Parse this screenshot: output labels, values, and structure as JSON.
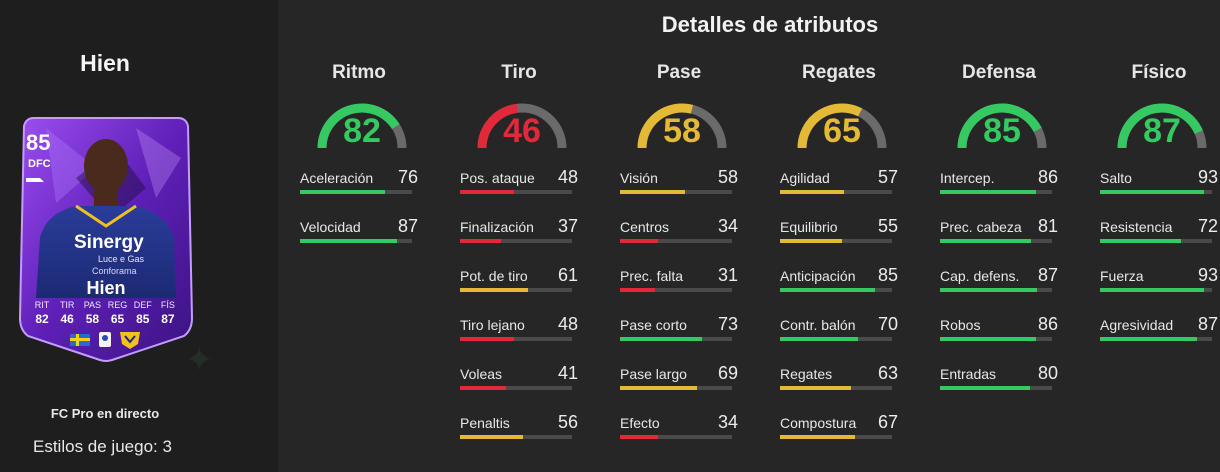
{
  "player": {
    "name": "Hien",
    "card_type": "FC Pro en directo",
    "playstyles": "Estilos de juego: 3"
  },
  "card": {
    "rating": "85",
    "position": "DFC",
    "name": "Hien",
    "sponsor": "Sinergy",
    "sponsor_sub": "Luce e Gas",
    "sponsor_sub2": "Conforama",
    "stats": [
      {
        "label": "RIT",
        "value": "82"
      },
      {
        "label": "TIR",
        "value": "46"
      },
      {
        "label": "PAS",
        "value": "58"
      },
      {
        "label": "REG",
        "value": "65"
      },
      {
        "label": "DEF",
        "value": "85"
      },
      {
        "label": "FÍS",
        "value": "87"
      }
    ]
  },
  "attributes_title": "Detalles de atributos",
  "colors": {
    "green": "#36c962",
    "yellow": "#e4b935",
    "red": "#e3283a",
    "track": "#4a4a4a",
    "card_purple": "#7c2fd6"
  },
  "columns": [
    {
      "title": "Ritmo",
      "value": "82",
      "attrs": [
        {
          "label": "Aceleración",
          "value": "76"
        },
        {
          "label": "Velocidad",
          "value": "87"
        }
      ]
    },
    {
      "title": "Tiro",
      "value": "46",
      "attrs": [
        {
          "label": "Pos. ataque",
          "value": "48"
        },
        {
          "label": "Finalización",
          "value": "37"
        },
        {
          "label": "Pot. de tiro",
          "value": "61"
        },
        {
          "label": "Tiro lejano",
          "value": "48"
        },
        {
          "label": "Voleas",
          "value": "41"
        },
        {
          "label": "Penaltis",
          "value": "56"
        }
      ]
    },
    {
      "title": "Pase",
      "value": "58",
      "attrs": [
        {
          "label": "Visión",
          "value": "58"
        },
        {
          "label": "Centros",
          "value": "34"
        },
        {
          "label": "Prec. falta",
          "value": "31"
        },
        {
          "label": "Pase corto",
          "value": "73"
        },
        {
          "label": "Pase largo",
          "value": "69"
        },
        {
          "label": "Efecto",
          "value": "34"
        }
      ]
    },
    {
      "title": "Regates",
      "value": "65",
      "attrs": [
        {
          "label": "Agilidad",
          "value": "57"
        },
        {
          "label": "Equilibrio",
          "value": "55"
        },
        {
          "label": "Anticipación",
          "value": "85"
        },
        {
          "label": "Contr. balón",
          "value": "70"
        },
        {
          "label": "Regates",
          "value": "63"
        },
        {
          "label": "Compostura",
          "value": "67"
        }
      ]
    },
    {
      "title": "Defensa",
      "value": "85",
      "attrs": [
        {
          "label": "Intercep.",
          "value": "86"
        },
        {
          "label": "Prec. cabeza",
          "value": "81"
        },
        {
          "label": "Cap. defens.",
          "value": "87"
        },
        {
          "label": "Robos",
          "value": "86"
        },
        {
          "label": "Entradas",
          "value": "80"
        }
      ]
    },
    {
      "title": "Físico",
      "value": "87",
      "attrs": [
        {
          "label": "Salto",
          "value": "93"
        },
        {
          "label": "Resistencia",
          "value": "72"
        },
        {
          "label": "Fuerza",
          "value": "93"
        },
        {
          "label": "Agresividad",
          "value": "87"
        }
      ]
    }
  ]
}
